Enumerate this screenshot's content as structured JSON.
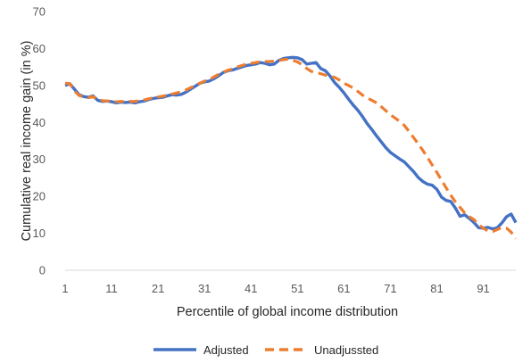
{
  "chart_data": {
    "type": "line",
    "title": "",
    "xlabel": "Percentile of global income distribution",
    "ylabel": "Cumulative real income gain (in %)",
    "xlim": [
      1,
      98
    ],
    "ylim": [
      0,
      70
    ],
    "xticks": [
      1,
      11,
      21,
      31,
      41,
      51,
      61,
      71,
      81,
      91
    ],
    "yticks": [
      0,
      10,
      20,
      30,
      40,
      50,
      60,
      70
    ],
    "grid": false,
    "legend_position": "bottom",
    "series": [
      {
        "name": "Adjusted",
        "color": "#4472C4",
        "style": "solid",
        "points": [
          [
            1,
            50
          ],
          [
            2,
            50.5
          ],
          [
            3,
            49
          ],
          [
            4,
            47.5
          ],
          [
            5,
            47
          ],
          [
            6,
            46.8
          ],
          [
            7,
            47.2
          ],
          [
            8,
            46
          ],
          [
            9,
            45.7
          ],
          [
            10,
            45.8
          ],
          [
            11,
            45.6
          ],
          [
            12,
            45.3
          ],
          [
            13,
            45.5
          ],
          [
            14,
            45.4
          ],
          [
            15,
            45.5
          ],
          [
            16,
            45.3
          ],
          [
            17,
            45.6
          ],
          [
            18,
            45.8
          ],
          [
            19,
            46.2
          ],
          [
            20,
            46.5
          ],
          [
            21,
            46.7
          ],
          [
            22,
            46.8
          ],
          [
            23,
            47.2
          ],
          [
            24,
            47.5
          ],
          [
            25,
            47.4
          ],
          [
            26,
            47.6
          ],
          [
            27,
            48.2
          ],
          [
            28,
            49
          ],
          [
            29,
            49.8
          ],
          [
            30,
            50.6
          ],
          [
            31,
            51
          ],
          [
            32,
            51.2
          ],
          [
            33,
            51.8
          ],
          [
            34,
            52.6
          ],
          [
            35,
            53.5
          ],
          [
            36,
            54
          ],
          [
            37,
            54.2
          ],
          [
            38,
            54.6
          ],
          [
            39,
            55
          ],
          [
            40,
            55.4
          ],
          [
            41,
            55.6
          ],
          [
            42,
            55.8
          ],
          [
            43,
            56.2
          ],
          [
            44,
            56
          ],
          [
            45,
            55.6
          ],
          [
            46,
            55.8
          ],
          [
            47,
            56.8
          ],
          [
            48,
            57.3
          ],
          [
            49,
            57.5
          ],
          [
            50,
            57.6
          ],
          [
            51,
            57.5
          ],
          [
            52,
            57
          ],
          [
            53,
            55.8
          ],
          [
            54,
            56
          ],
          [
            55,
            56.2
          ],
          [
            56,
            54.6
          ],
          [
            57,
            54
          ],
          [
            58,
            52.6
          ],
          [
            59,
            50.8
          ],
          [
            60,
            49.5
          ],
          [
            61,
            48
          ],
          [
            62,
            46.3
          ],
          [
            63,
            44.7
          ],
          [
            64,
            43.3
          ],
          [
            65,
            41.6
          ],
          [
            66,
            39.7
          ],
          [
            67,
            38.1
          ],
          [
            68,
            36.4
          ],
          [
            69,
            34.8
          ],
          [
            70,
            33.2
          ],
          [
            71,
            31.9
          ],
          [
            72,
            31
          ],
          [
            73,
            30.1
          ],
          [
            74,
            29.3
          ],
          [
            75,
            28
          ],
          [
            76,
            26.7
          ],
          [
            77,
            25.1
          ],
          [
            78,
            24
          ],
          [
            79,
            23.3
          ],
          [
            80,
            23
          ],
          [
            81,
            21.9
          ],
          [
            82,
            19.8
          ],
          [
            83,
            18.9
          ],
          [
            84,
            18.6
          ],
          [
            85,
            16.8
          ],
          [
            86,
            14.6
          ],
          [
            87,
            15
          ],
          [
            88,
            14
          ],
          [
            89,
            12.9
          ],
          [
            90,
            11.5
          ],
          [
            91,
            11.4
          ],
          [
            92,
            11.6
          ],
          [
            93,
            11.2
          ],
          [
            94,
            11.5
          ],
          [
            95,
            12.8
          ],
          [
            96,
            14.5
          ],
          [
            97,
            15.2
          ],
          [
            98,
            12.9
          ]
        ]
      },
      {
        "name": "Unadjussted",
        "color": "#ED7D31",
        "style": "dashed",
        "points": [
          [
            1,
            50.6
          ],
          [
            2,
            50.5
          ],
          [
            3,
            48.5
          ],
          [
            4,
            47.3
          ],
          [
            5,
            46.9
          ],
          [
            6,
            46.7
          ],
          [
            7,
            47
          ],
          [
            8,
            46.2
          ],
          [
            9,
            45.9
          ],
          [
            10,
            45.8
          ],
          [
            11,
            45.7
          ],
          [
            12,
            45.6
          ],
          [
            13,
            45.7
          ],
          [
            14,
            45.6
          ],
          [
            15,
            45.7
          ],
          [
            16,
            45.7
          ],
          [
            17,
            45.9
          ],
          [
            18,
            46.1
          ],
          [
            19,
            46.4
          ],
          [
            20,
            46.7
          ],
          [
            21,
            46.9
          ],
          [
            22,
            47.1
          ],
          [
            23,
            47.4
          ],
          [
            24,
            47.7
          ],
          [
            25,
            48
          ],
          [
            26,
            48.3
          ],
          [
            27,
            48.8
          ],
          [
            28,
            49.4
          ],
          [
            29,
            50
          ],
          [
            30,
            50.6
          ],
          [
            31,
            51.2
          ],
          [
            32,
            51.6
          ],
          [
            33,
            52.3
          ],
          [
            34,
            53
          ],
          [
            35,
            53.6
          ],
          [
            36,
            54.1
          ],
          [
            37,
            54.5
          ],
          [
            38,
            55
          ],
          [
            39,
            55.4
          ],
          [
            40,
            55.8
          ],
          [
            41,
            56
          ],
          [
            42,
            56.2
          ],
          [
            43,
            56.4
          ],
          [
            44,
            56.5
          ],
          [
            45,
            56.5
          ],
          [
            46,
            56.6
          ],
          [
            47,
            56.8
          ],
          [
            48,
            57
          ],
          [
            49,
            57.1
          ],
          [
            50,
            56.8
          ],
          [
            51,
            56.4
          ],
          [
            52,
            55.6
          ],
          [
            53,
            54.6
          ],
          [
            54,
            53.8
          ],
          [
            55,
            53.5
          ],
          [
            56,
            53.2
          ],
          [
            57,
            52.8
          ],
          [
            58,
            52.5
          ],
          [
            59,
            52.2
          ],
          [
            60,
            51.5
          ],
          [
            61,
            50.6
          ],
          [
            62,
            50
          ],
          [
            63,
            49.3
          ],
          [
            64,
            48.4
          ],
          [
            65,
            47.4
          ],
          [
            66,
            46.6
          ],
          [
            67,
            46
          ],
          [
            68,
            45.3
          ],
          [
            69,
            44.3
          ],
          [
            70,
            43.2
          ],
          [
            71,
            42.1
          ],
          [
            72,
            41.2
          ],
          [
            73,
            40.3
          ],
          [
            74,
            39.2
          ],
          [
            75,
            37.6
          ],
          [
            76,
            35.9
          ],
          [
            77,
            34.2
          ],
          [
            78,
            32.4
          ],
          [
            79,
            30.5
          ],
          [
            80,
            28.5
          ],
          [
            81,
            26.5
          ],
          [
            82,
            24.4
          ],
          [
            83,
            22.3
          ],
          [
            84,
            20.3
          ],
          [
            85,
            18.5
          ],
          [
            86,
            17
          ],
          [
            87,
            15.5
          ],
          [
            88,
            14.5
          ],
          [
            89,
            13.7
          ],
          [
            90,
            12.3
          ],
          [
            91,
            11.4
          ],
          [
            92,
            10.6
          ],
          [
            93,
            10.5
          ],
          [
            94,
            11
          ],
          [
            95,
            11.6
          ],
          [
            96,
            11.4
          ],
          [
            97,
            10.3
          ],
          [
            98,
            8.6
          ]
        ]
      }
    ]
  }
}
